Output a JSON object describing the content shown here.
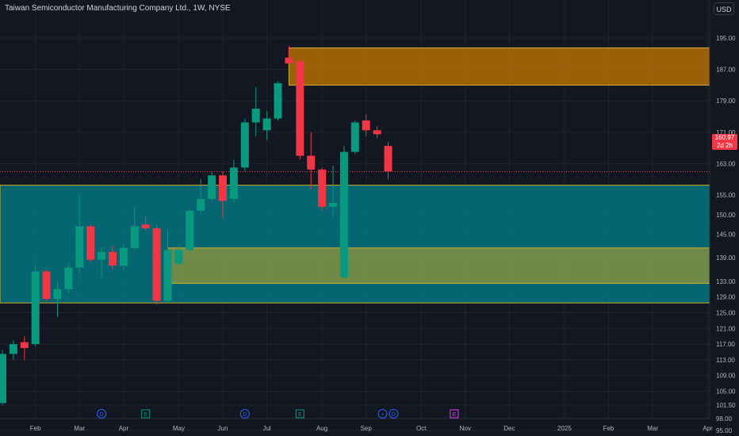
{
  "header": {
    "title": "Taiwan Semiconductor Manufacturing Company Ltd., 1W, NYSE",
    "currency": "USD"
  },
  "price_label": {
    "price": "160.97",
    "countdown": "2d 2h"
  },
  "colors": {
    "background": "#131722",
    "up": "#089981",
    "down": "#f23645",
    "demand_zone": "#00838f",
    "inner_zone": "#b8a22e",
    "supply_zone": "#c77900",
    "zone_border": "#d4b02c",
    "grid": "#1f2430",
    "axis_text": "#b2b5be"
  },
  "chart_data": {
    "type": "candlestick",
    "title": "Taiwan Semiconductor Manufacturing Company Ltd., 1W, NYSE",
    "timeframe": "1W",
    "exchange": "NYSE",
    "currency": "USD",
    "last_price": 160.97,
    "ylim": [
      93,
      199
    ],
    "y_ticks": [
      "195.00",
      "187.00",
      "179.00",
      "171.00",
      "163.00",
      "155.00",
      "150.00",
      "145.00",
      "139.00",
      "133.00",
      "129.00",
      "125.00",
      "121.00",
      "117.00",
      "113.00",
      "109.00",
      "105.00",
      "101.50",
      "98.00",
      "95.00"
    ],
    "x_labels": [
      {
        "label": "Feb",
        "week": 3
      },
      {
        "label": "Mar",
        "week": 7
      },
      {
        "label": "Apr",
        "week": 11
      },
      {
        "label": "May",
        "week": 16
      },
      {
        "label": "Jun",
        "week": 20
      },
      {
        "label": "Jul",
        "week": 24
      },
      {
        "label": "Aug",
        "week": 29
      },
      {
        "label": "Sep",
        "week": 33
      },
      {
        "label": "Oct",
        "week": 38
      },
      {
        "label": "Nov",
        "week": 42
      },
      {
        "label": "Dec",
        "week": 46
      },
      {
        "label": "2025",
        "week": 51
      },
      {
        "label": "Feb",
        "week": 55
      },
      {
        "label": "Mar",
        "week": 59
      },
      {
        "label": "Apr",
        "week": 64
      }
    ],
    "candles": [
      {
        "o": 102.0,
        "h": 115.5,
        "l": 101.5,
        "c": 114.5
      },
      {
        "o": 114.5,
        "h": 118.0,
        "l": 113.0,
        "c": 117.0
      },
      {
        "o": 117.5,
        "h": 119.0,
        "l": 113.0,
        "c": 116.0
      },
      {
        "o": 117.0,
        "h": 137.0,
        "l": 116.5,
        "c": 135.5
      },
      {
        "o": 135.5,
        "h": 136.0,
        "l": 128.0,
        "c": 128.5
      },
      {
        "o": 128.5,
        "h": 133.0,
        "l": 124.0,
        "c": 131.0
      },
      {
        "o": 131.0,
        "h": 137.5,
        "l": 130.0,
        "c": 136.5
      },
      {
        "o": 136.5,
        "h": 155.0,
        "l": 135.0,
        "c": 147.0
      },
      {
        "o": 147.0,
        "h": 147.5,
        "l": 138.0,
        "c": 138.5
      },
      {
        "o": 138.5,
        "h": 142.0,
        "l": 134.0,
        "c": 140.5
      },
      {
        "o": 140.5,
        "h": 142.0,
        "l": 136.0,
        "c": 137.0
      },
      {
        "o": 137.0,
        "h": 142.5,
        "l": 136.0,
        "c": 141.5
      },
      {
        "o": 141.5,
        "h": 152.0,
        "l": 141.0,
        "c": 147.0
      },
      {
        "o": 147.5,
        "h": 149.5,
        "l": 146.0,
        "c": 146.5
      },
      {
        "o": 146.5,
        "h": 147.5,
        "l": 127.0,
        "c": 128.0
      },
      {
        "o": 128.0,
        "h": 146.0,
        "l": 127.5,
        "c": 141.0
      },
      {
        "o": 137.5,
        "h": 142.0,
        "l": 137.0,
        "c": 141.0
      },
      {
        "o": 141.0,
        "h": 151.5,
        "l": 140.5,
        "c": 151.0
      },
      {
        "o": 151.0,
        "h": 159.0,
        "l": 150.0,
        "c": 154.0
      },
      {
        "o": 154.0,
        "h": 161.0,
        "l": 153.5,
        "c": 160.0
      },
      {
        "o": 160.0,
        "h": 161.0,
        "l": 149.0,
        "c": 153.5
      },
      {
        "o": 154.0,
        "h": 164.0,
        "l": 153.0,
        "c": 162.0
      },
      {
        "o": 162.0,
        "h": 174.5,
        "l": 161.0,
        "c": 173.5
      },
      {
        "o": 173.5,
        "h": 182.5,
        "l": 170.0,
        "c": 177.0
      },
      {
        "o": 171.5,
        "h": 176.5,
        "l": 169.0,
        "c": 174.5
      },
      {
        "o": 174.5,
        "h": 184.0,
        "l": 174.0,
        "c": 183.5
      },
      {
        "o": 190.0,
        "h": 193.0,
        "l": 188.5,
        "c": 188.5
      },
      {
        "o": 189.0,
        "h": 189.5,
        "l": 164.0,
        "c": 165.0
      },
      {
        "o": 165.0,
        "h": 171.0,
        "l": 156.5,
        "c": 161.5
      },
      {
        "o": 161.5,
        "h": 162.0,
        "l": 151.0,
        "c": 152.0
      },
      {
        "o": 152.0,
        "h": 162.5,
        "l": 149.5,
        "c": 153.0
      },
      {
        "o": 134.0,
        "h": 167.5,
        "l": 133.5,
        "c": 166.0
      },
      {
        "o": 166.0,
        "h": 174.0,
        "l": 165.5,
        "c": 173.5
      },
      {
        "o": 174.0,
        "h": 175.5,
        "l": 170.0,
        "c": 171.5
      },
      {
        "o": 171.5,
        "h": 172.5,
        "l": 169.5,
        "c": 170.5
      },
      {
        "o": 167.5,
        "h": 168.5,
        "l": 159.0,
        "c": 161.0
      }
    ],
    "zones": [
      {
        "name": "supply-zone",
        "top": 192.5,
        "bottom": 183.0,
        "start_week": 26
      },
      {
        "name": "demand-zone",
        "top": 157.5,
        "bottom": 127.5,
        "start_week": -1
      },
      {
        "name": "inner-zone",
        "top": 141.5,
        "bottom": 132.5,
        "start_week": 15
      }
    ],
    "events": [
      {
        "symbol": "E",
        "week": -1,
        "color": "#089981"
      },
      {
        "symbol": "D",
        "week": 9,
        "color": "#2962ff"
      },
      {
        "symbol": "E",
        "week": 13,
        "color": "#089981"
      },
      {
        "symbol": "D",
        "week": 22,
        "color": "#2962ff"
      },
      {
        "symbol": "E",
        "week": 27,
        "color": "#089981"
      },
      {
        "symbol": "+",
        "week": 34.5,
        "color": "#2962ff"
      },
      {
        "symbol": "D",
        "week": 35.5,
        "color": "#2962ff"
      },
      {
        "symbol": "E",
        "week": 41,
        "color": "#e040fb"
      }
    ],
    "grid": true
  }
}
